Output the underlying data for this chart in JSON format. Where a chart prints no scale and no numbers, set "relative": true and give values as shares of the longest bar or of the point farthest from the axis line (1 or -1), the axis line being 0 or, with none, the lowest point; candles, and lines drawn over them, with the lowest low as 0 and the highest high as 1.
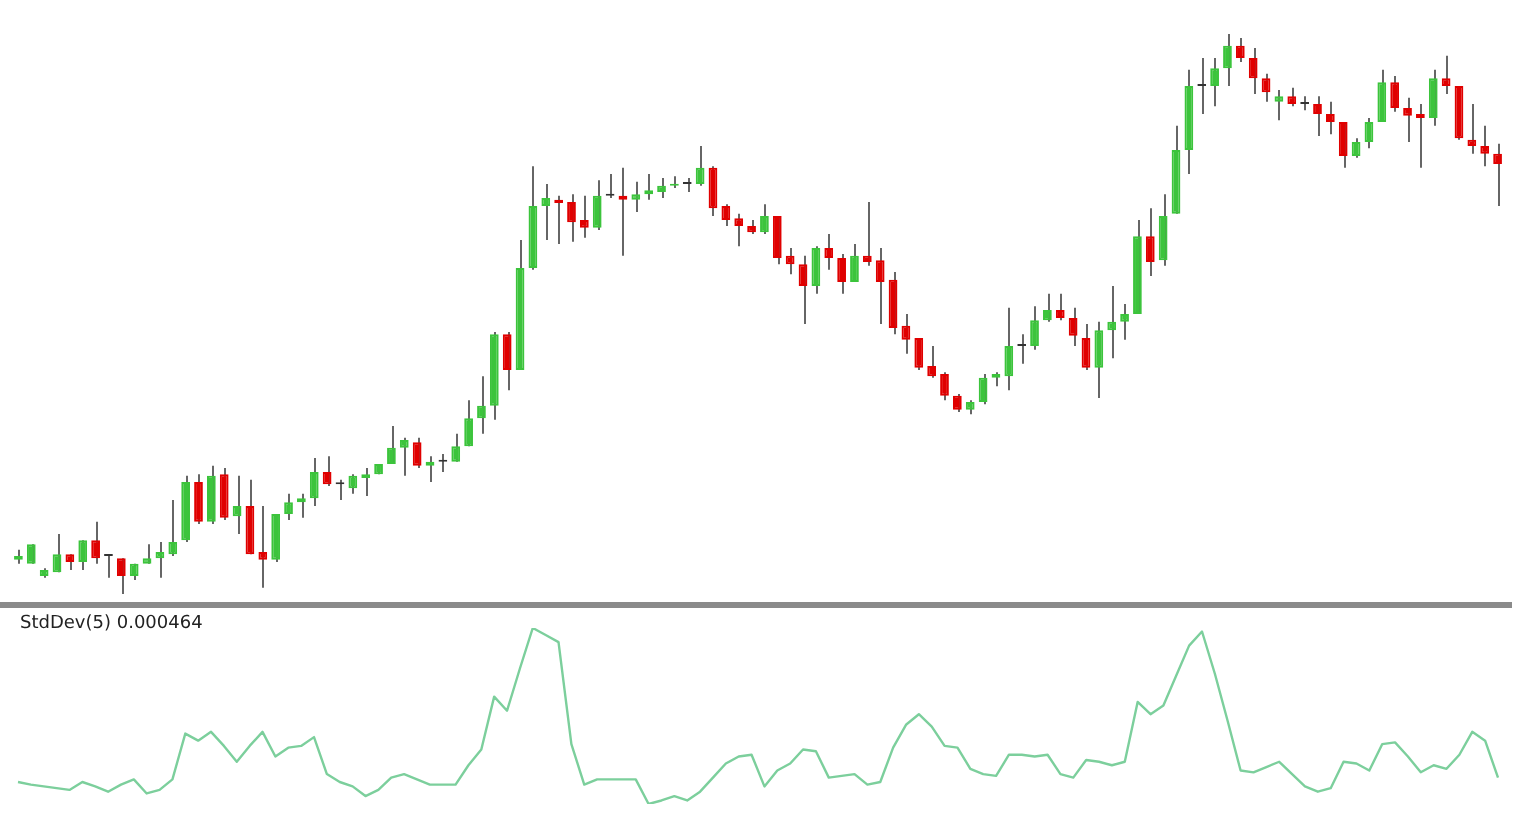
{
  "chart_data": [
    {
      "type": "candlestick",
      "relative": true,
      "tick_labels": false,
      "categories": [
        null,
        null,
        null,
        null,
        null,
        null,
        null,
        null,
        null,
        null,
        null,
        null,
        null,
        null,
        null,
        null,
        null,
        null,
        null,
        null,
        null,
        null,
        null,
        null,
        null,
        null,
        null,
        null,
        null,
        null,
        null,
        null,
        null,
        null,
        null,
        null,
        null,
        null,
        null,
        null,
        null,
        null,
        null,
        null,
        null,
        null,
        null,
        null,
        null,
        null,
        null,
        null,
        null,
        null,
        null,
        null,
        null,
        null,
        null,
        null,
        null,
        null,
        null,
        null,
        null,
        null,
        null,
        null,
        null,
        null,
        null,
        null,
        null,
        null,
        null,
        null,
        null,
        null,
        null,
        null,
        null,
        null,
        null,
        null,
        null,
        null,
        null,
        null,
        null,
        null,
        null,
        null,
        null,
        null,
        null,
        null,
        null,
        null,
        null,
        null,
        null,
        null,
        null,
        null,
        null,
        null,
        null,
        null,
        null,
        null,
        null,
        null,
        null,
        null,
        null,
        null
      ],
      "ohlc": [
        [
          0.061,
          0.079,
          0.054,
          0.068
        ],
        [
          0.054,
          0.089,
          0.054,
          0.089
        ],
        [
          0.032,
          0.046,
          0.029,
          0.043
        ],
        [
          0.039,
          0.107,
          0.039,
          0.071
        ],
        [
          0.071,
          0.071,
          0.043,
          0.057
        ],
        [
          0.057,
          0.096,
          0.043,
          0.096
        ],
        [
          0.096,
          0.129,
          0.054,
          0.064
        ],
        [
          0.068,
          0.068,
          0.029,
          0.068
        ],
        [
          0.064,
          0.064,
          0,
          0.032
        ],
        [
          0.032,
          0.054,
          0.025,
          0.054
        ],
        [
          0.054,
          0.089,
          0.054,
          0.064
        ],
        [
          0.064,
          0.093,
          0.029,
          0.075
        ],
        [
          0.071,
          0.168,
          0.068,
          0.093
        ],
        [
          0.096,
          0.211,
          0.093,
          0.2
        ],
        [
          0.2,
          0.214,
          0.125,
          0.129
        ],
        [
          0.129,
          0.229,
          0.125,
          0.211
        ],
        [
          0.214,
          0.225,
          0.132,
          0.136
        ],
        [
          0.139,
          0.211,
          0.107,
          0.157
        ],
        [
          0.157,
          0.204,
          0.071,
          0.071
        ],
        [
          0.075,
          0.157,
          0.011,
          0.061
        ],
        [
          0.061,
          0.143,
          0.057,
          0.143
        ],
        [
          0.143,
          0.179,
          0.132,
          0.164
        ],
        [
          0.164,
          0.179,
          0.136,
          0.171
        ],
        [
          0.171,
          0.243,
          0.157,
          0.218
        ],
        [
          0.218,
          0.246,
          0.193,
          0.196
        ],
        [
          0.196,
          0.204,
          0.168,
          0.196
        ],
        [
          0.189,
          0.214,
          0.179,
          0.211
        ],
        [
          0.207,
          0.225,
          0.175,
          0.214
        ],
        [
          0.214,
          0.232,
          0.214,
          0.232
        ],
        [
          0.232,
          0.3,
          0.232,
          0.261
        ],
        [
          0.261,
          0.279,
          0.211,
          0.275
        ],
        [
          0.271,
          0.279,
          0.225,
          0.229
        ],
        [
          0.229,
          0.246,
          0.2,
          0.236
        ],
        [
          0.236,
          0.25,
          0.218,
          0.236
        ],
        [
          0.236,
          0.286,
          0.236,
          0.264
        ],
        [
          0.264,
          0.346,
          0.264,
          0.314
        ],
        [
          0.314,
          0.389,
          0.286,
          0.336
        ],
        [
          0.336,
          0.468,
          0.311,
          0.464
        ],
        [
          0.464,
          0.468,
          0.364,
          0.4
        ],
        [
          0.4,
          0.632,
          0.4,
          0.582
        ],
        [
          0.582,
          0.764,
          0.579,
          0.693
        ],
        [
          0.693,
          0.732,
          0.632,
          0.707
        ],
        [
          0.704,
          0.711,
          0.625,
          0.698
        ],
        [
          0.7,
          0.714,
          0.629,
          0.664
        ],
        [
          0.668,
          0.711,
          0.636,
          0.654
        ],
        [
          0.654,
          0.739,
          0.65,
          0.711
        ],
        [
          0.711,
          0.75,
          0.707,
          0.711
        ],
        [
          0.711,
          0.761,
          0.604,
          0.704
        ],
        [
          0.704,
          0.736,
          0.682,
          0.714
        ],
        [
          0.714,
          0.75,
          0.704,
          0.721
        ],
        [
          0.718,
          0.743,
          0.707,
          0.729
        ],
        [
          0.729,
          0.746,
          0.725,
          0.732
        ],
        [
          0.732,
          0.743,
          0.718,
          0.732
        ],
        [
          0.732,
          0.8,
          0.729,
          0.761
        ],
        [
          0.761,
          0.764,
          0.675,
          0.689
        ],
        [
          0.693,
          0.696,
          0.657,
          0.668
        ],
        [
          0.671,
          0.679,
          0.621,
          0.657
        ],
        [
          0.657,
          0.668,
          0.643,
          0.646
        ],
        [
          0.646,
          0.696,
          0.643,
          0.675
        ],
        [
          0.675,
          0.675,
          0.589,
          0.6
        ],
        [
          0.604,
          0.618,
          0.571,
          0.589
        ],
        [
          0.589,
          0.604,
          0.482,
          0.55
        ],
        [
          0.55,
          0.621,
          0.536,
          0.618
        ],
        [
          0.618,
          0.643,
          0.579,
          0.6
        ],
        [
          0.6,
          0.607,
          0.536,
          0.557
        ],
        [
          0.557,
          0.625,
          0.557,
          0.604
        ],
        [
          0.604,
          0.7,
          0.586,
          0.593
        ],
        [
          0.596,
          0.618,
          0.482,
          0.557
        ],
        [
          0.561,
          0.575,
          0.464,
          0.475
        ],
        [
          0.479,
          0.5,
          0.429,
          0.454
        ],
        [
          0.457,
          0.457,
          0.4,
          0.404
        ],
        [
          0.407,
          0.443,
          0.386,
          0.389
        ],
        [
          0.393,
          0.396,
          0.346,
          0.354
        ],
        [
          0.354,
          0.357,
          0.325,
          0.329
        ],
        [
          0.329,
          0.346,
          0.321,
          0.343
        ],
        [
          0.343,
          0.393,
          0.339,
          0.386
        ],
        [
          0.386,
          0.396,
          0.371,
          0.393
        ],
        [
          0.389,
          0.511,
          0.364,
          0.443
        ],
        [
          0.443,
          0.464,
          0.411,
          0.443
        ],
        [
          0.443,
          0.514,
          0.436,
          0.489
        ],
        [
          0.489,
          0.536,
          0.486,
          0.507
        ],
        [
          0.507,
          0.536,
          0.489,
          0.493
        ],
        [
          0.493,
          0.511,
          0.443,
          0.461
        ],
        [
          0.457,
          0.482,
          0.4,
          0.404
        ],
        [
          0.404,
          0.486,
          0.35,
          0.471
        ],
        [
          0.471,
          0.55,
          0.421,
          0.486
        ],
        [
          0.486,
          0.518,
          0.454,
          0.5
        ],
        [
          0.5,
          0.668,
          0.5,
          0.639
        ],
        [
          0.639,
          0.689,
          0.568,
          0.593
        ],
        [
          0.596,
          0.714,
          0.586,
          0.675
        ],
        [
          0.679,
          0.836,
          0.679,
          0.793
        ],
        [
          0.793,
          0.936,
          0.75,
          0.907
        ],
        [
          0.907,
          0.957,
          0.857,
          0.907
        ],
        [
          0.907,
          0.957,
          0.871,
          0.939
        ],
        [
          0.939,
          1,
          0.907,
          0.979
        ],
        [
          0.979,
          0.993,
          0.95,
          0.957
        ],
        [
          0.957,
          0.975,
          0.893,
          0.921
        ],
        [
          0.921,
          0.929,
          0.879,
          0.896
        ],
        [
          0.879,
          0.9,
          0.846,
          0.889
        ],
        [
          0.889,
          0.904,
          0.871,
          0.875
        ],
        [
          0.875,
          0.889,
          0.864,
          0.875
        ],
        [
          0.875,
          0.889,
          0.818,
          0.857
        ],
        [
          0.857,
          0.879,
          0.821,
          0.843
        ],
        [
          0.843,
          0.843,
          0.761,
          0.782
        ],
        [
          0.782,
          0.814,
          0.779,
          0.807
        ],
        [
          0.807,
          0.85,
          0.796,
          0.843
        ],
        [
          0.843,
          0.936,
          0.843,
          0.914
        ],
        [
          0.914,
          0.925,
          0.861,
          0.868
        ],
        [
          0.868,
          0.886,
          0.807,
          0.854
        ],
        [
          0.857,
          0.875,
          0.761,
          0.85
        ],
        [
          0.85,
          0.936,
          0.836,
          0.921
        ],
        [
          0.921,
          0.961,
          0.893,
          0.907
        ],
        [
          0.907,
          0.907,
          0.811,
          0.814
        ],
        [
          0.811,
          0.875,
          0.786,
          0.8
        ],
        [
          0.8,
          0.836,
          0.764,
          0.786
        ],
        [
          0.786,
          0.804,
          0.693,
          0.768
        ]
      ],
      "colors": [
        "#3cc43c",
        "#3cc43c",
        "#3cc43c",
        "#3cc43c",
        "#e00000",
        "#3cc43c",
        "#e00000",
        "#333333",
        "#e00000",
        "#3cc43c",
        "#3cc43c",
        "#3cc43c",
        "#3cc43c",
        "#3cc43c",
        "#e00000",
        "#3cc43c",
        "#e00000",
        "#3cc43c",
        "#e00000",
        "#e00000",
        "#3cc43c",
        "#3cc43c",
        "#3cc43c",
        "#3cc43c",
        "#e00000",
        "#333333",
        "#3cc43c",
        "#3cc43c",
        "#3cc43c",
        "#3cc43c",
        "#3cc43c",
        "#e00000",
        "#3cc43c",
        "#333333",
        "#3cc43c",
        "#3cc43c",
        "#3cc43c",
        "#3cc43c",
        "#e00000",
        "#3cc43c",
        "#3cc43c",
        "#3cc43c",
        "#e00000",
        "#e00000",
        "#e00000",
        "#3cc43c",
        "#333333",
        "#e00000",
        "#3cc43c",
        "#3cc43c",
        "#3cc43c",
        "#3cc43c",
        "#333333",
        "#3cc43c",
        "#e00000",
        "#e00000",
        "#e00000",
        "#e00000",
        "#3cc43c",
        "#e00000",
        "#e00000",
        "#e00000",
        "#3cc43c",
        "#e00000",
        "#e00000",
        "#3cc43c",
        "#e00000",
        "#e00000",
        "#e00000",
        "#e00000",
        "#e00000",
        "#e00000",
        "#e00000",
        "#e00000",
        "#3cc43c",
        "#3cc43c",
        "#3cc43c",
        "#3cc43c",
        "#333333",
        "#3cc43c",
        "#3cc43c",
        "#e00000",
        "#e00000",
        "#e00000",
        "#3cc43c",
        "#3cc43c",
        "#3cc43c",
        "#3cc43c",
        "#e00000",
        "#3cc43c",
        "#3cc43c",
        "#3cc43c",
        "#333333",
        "#3cc43c",
        "#3cc43c",
        "#e00000",
        "#e00000",
        "#e00000",
        "#3cc43c",
        "#e00000",
        "#333333",
        "#e00000",
        "#e00000",
        "#e00000",
        "#3cc43c",
        "#3cc43c",
        "#3cc43c",
        "#e00000",
        "#e00000",
        "#e00000",
        "#3cc43c",
        "#e00000",
        "#e00000",
        "#e00000",
        "#e00000",
        "#e00000"
      ]
    },
    {
      "type": "line",
      "relative": true,
      "tick_labels": false,
      "title": "StdDev(5) 0.000464",
      "marker": "none",
      "categories": [
        null,
        null,
        null,
        null,
        null,
        null,
        null,
        null,
        null,
        null,
        null,
        null,
        null,
        null,
        null,
        null,
        null,
        null,
        null,
        null,
        null,
        null,
        null,
        null,
        null,
        null,
        null,
        null,
        null,
        null,
        null,
        null,
        null,
        null,
        null,
        null,
        null,
        null,
        null,
        null,
        null,
        null,
        null,
        null,
        null,
        null,
        null,
        null,
        null,
        null,
        null,
        null,
        null,
        null,
        null,
        null,
        null,
        null,
        null,
        null,
        null,
        null,
        null,
        null,
        null,
        null,
        null,
        null,
        null,
        null,
        null,
        null,
        null,
        null,
        null,
        null,
        null,
        null,
        null,
        null,
        null,
        null,
        null,
        null,
        null,
        null,
        null,
        null,
        null,
        null,
        null,
        null,
        null,
        null,
        null,
        null,
        null,
        null,
        null,
        null,
        null,
        null,
        null,
        null,
        null,
        null,
        null,
        null,
        null,
        null,
        null,
        null,
        null,
        null,
        null,
        null
      ],
      "series": [
        {
          "color": "#7ccf9c",
          "values": [
            0.125,
            0.11,
            0.1,
            0.09,
            0.08,
            0.125,
            0.1,
            0.07,
            0.11,
            0.14,
            0.06,
            0.08,
            0.14,
            0.4,
            0.36,
            0.41,
            0.33,
            0.24,
            0.33,
            0.41,
            0.27,
            0.32,
            0.33,
            0.38,
            0.17,
            0.125,
            0.1,
            0.045,
            0.08,
            0.15,
            0.17,
            0.14,
            0.11,
            0.11,
            0.11,
            0.22,
            0.31,
            0.61,
            0.53,
            0.77,
            1,
            0.96,
            0.92,
            0.34,
            0.11,
            0.14,
            0.14,
            0.14,
            0.14,
            0,
            0.02,
            0.045,
            0.02,
            0.07,
            0.15,
            0.23,
            0.27,
            0.28,
            0.1,
            0.19,
            0.23,
            0.31,
            0.3,
            0.15,
            0.16,
            0.17,
            0.11,
            0.125,
            0.32,
            0.45,
            0.51,
            0.44,
            0.33,
            0.32,
            0.2,
            0.17,
            0.16,
            0.28,
            0.28,
            0.27,
            0.28,
            0.17,
            0.15,
            0.25,
            0.24,
            0.22,
            0.24,
            0.58,
            0.51,
            0.56,
            0.73,
            0.9,
            0.98,
            0.74,
            0.47,
            0.19,
            0.18,
            0.21,
            0.24,
            0.17,
            0.1,
            0.07,
            0.09,
            0.24,
            0.23,
            0.19,
            0.34,
            0.35,
            0.27,
            0.18,
            0.22,
            0.2,
            0.28,
            0.41,
            0.36,
            0.15
          ]
        }
      ]
    }
  ]
}
